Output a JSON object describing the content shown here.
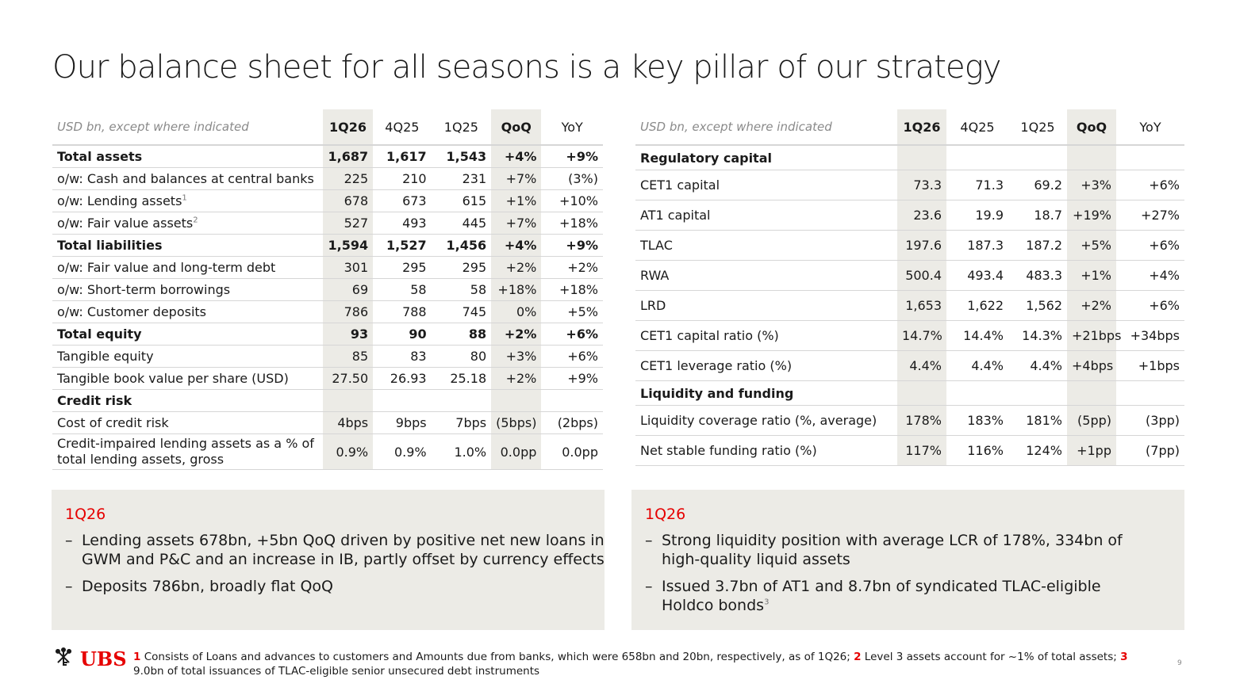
{
  "title": "Our balance sheet for all seasons is a key pillar of our strategy",
  "left_table": {
    "header": [
      "USD bn, except where indicated",
      "1Q26",
      "4Q25",
      "1Q25",
      "QoQ",
      "YoY"
    ],
    "rows": [
      {
        "label": "Total assets",
        "values": [
          "1,687",
          "1,617",
          "1,543",
          "+4%",
          "+9%"
        ],
        "bold": true
      },
      {
        "label": "o/w: Cash and balances at central banks",
        "values": [
          "225",
          "210",
          "231",
          "+7%",
          "(3%)"
        ]
      },
      {
        "label": "o/w: Lending assets",
        "sup": "1",
        "values": [
          "678",
          "673",
          "615",
          "+1%",
          "+10%"
        ]
      },
      {
        "label": "o/w: Fair value assets",
        "sup": "2",
        "values": [
          "527",
          "493",
          "445",
          "+7%",
          "+18%"
        ]
      },
      {
        "label": "Total liabilities",
        "values": [
          "1,594",
          "1,527",
          "1,456",
          "+4%",
          "+9%"
        ],
        "bold": true
      },
      {
        "label": "o/w: Fair value and long-term debt",
        "values": [
          "301",
          "295",
          "295",
          "+2%",
          "+2%"
        ]
      },
      {
        "label": "o/w: Short-term borrowings",
        "values": [
          "69",
          "58",
          "58",
          "+18%",
          "+18%"
        ]
      },
      {
        "label": "o/w: Customer deposits",
        "values": [
          "786",
          "788",
          "745",
          "0%",
          "+5%"
        ]
      },
      {
        "label": "Total equity",
        "values": [
          "93",
          "90",
          "88",
          "+2%",
          "+6%"
        ],
        "bold": true
      },
      {
        "label": "Tangible equity",
        "values": [
          "85",
          "83",
          "80",
          "+3%",
          "+6%"
        ]
      },
      {
        "label": "Tangible book value per share (USD)",
        "values": [
          "27.50",
          "26.93",
          "25.18",
          "+2%",
          "+9%"
        ]
      },
      {
        "label": "Credit risk",
        "values": [
          "",
          "",
          "",
          "",
          ""
        ],
        "bold": true,
        "section": true
      },
      {
        "label": "Cost of credit risk",
        "values": [
          "4bps",
          "9bps",
          "7bps",
          "(5bps)",
          "(2bps)"
        ]
      },
      {
        "label": "Credit-impaired lending assets as a % of total lending assets, gross",
        "values": [
          "0.9%",
          "0.9%",
          "1.0%",
          "0.0pp",
          "0.0pp"
        ],
        "tall": true
      }
    ]
  },
  "right_table": {
    "header": [
      "USD bn, except where indicated",
      "1Q26",
      "4Q25",
      "1Q25",
      "QoQ",
      "YoY"
    ],
    "rows": [
      {
        "label": "Regulatory capital",
        "values": [
          "",
          "",
          "",
          "",
          ""
        ],
        "bold": true,
        "section": true
      },
      {
        "label": "CET1 capital",
        "values": [
          "73.3",
          "71.3",
          "69.2",
          "+3%",
          "+6%"
        ]
      },
      {
        "label": "AT1 capital",
        "values": [
          "23.6",
          "19.9",
          "18.7",
          "+19%",
          "+27%"
        ]
      },
      {
        "label": "TLAC",
        "values": [
          "197.6",
          "187.3",
          "187.2",
          "+5%",
          "+6%"
        ]
      },
      {
        "label": "RWA",
        "values": [
          "500.4",
          "493.4",
          "483.3",
          "+1%",
          "+4%"
        ]
      },
      {
        "label": "LRD",
        "values": [
          "1,653",
          "1,622",
          "1,562",
          "+2%",
          "+6%"
        ]
      },
      {
        "label": "CET1 capital ratio (%)",
        "values": [
          "14.7%",
          "14.4%",
          "14.3%",
          "+21bps",
          "+34bps"
        ]
      },
      {
        "label": "CET1 leverage ratio (%)",
        "values": [
          "4.4%",
          "4.4%",
          "4.4%",
          "+4bps",
          "+1bps"
        ]
      },
      {
        "label": "Liquidity and funding",
        "values": [
          "",
          "",
          "",
          "",
          ""
        ],
        "bold": true,
        "section": true
      },
      {
        "label": "Liquidity coverage ratio (%, average)",
        "values": [
          "178%",
          "183%",
          "181%",
          "(5pp)",
          "(3pp)"
        ]
      },
      {
        "label": "Net stable funding ratio (%)",
        "values": [
          "117%",
          "116%",
          "124%",
          "+1pp",
          "(7pp)"
        ]
      }
    ]
  },
  "left_box": {
    "title": "1Q26",
    "bullets": [
      "Lending assets 678bn, +5bn QoQ driven by positive net new loans in GWM and P&C and an increase in IB, partly offset by currency effects",
      "Deposits 786bn, broadly flat QoQ"
    ]
  },
  "right_box": {
    "title": "1Q26",
    "bullets": [
      "Strong liquidity position with average LCR of 178%, 334bn of high-quality liquid assets",
      "Issued 3.7bn of AT1 and 8.7bn of syndicated TLAC-eligible Holdco bonds"
    ],
    "last_bullet_sup": "3"
  },
  "bullet_dash": "–",
  "logo": {
    "text": "UBS",
    "icon": "keys-icon",
    "color": "#e60000"
  },
  "footnote": {
    "n1": "1",
    "t1": " Consists of Loans and advances to customers and Amounts due from banks, which were 658bn and 20bn, respectively, as of 1Q26; ",
    "n2": "2",
    "t2": " Level 3 assets account for ~1% of total assets; ",
    "n3": "3",
    "t3": " 9.0bn of total issuances of TLAC-eligible senior unsecured debt instruments"
  },
  "page_number": "9",
  "colors": {
    "accent": "#e60000",
    "highlight": "#ecebe6",
    "rule": "#d6d6d6"
  }
}
